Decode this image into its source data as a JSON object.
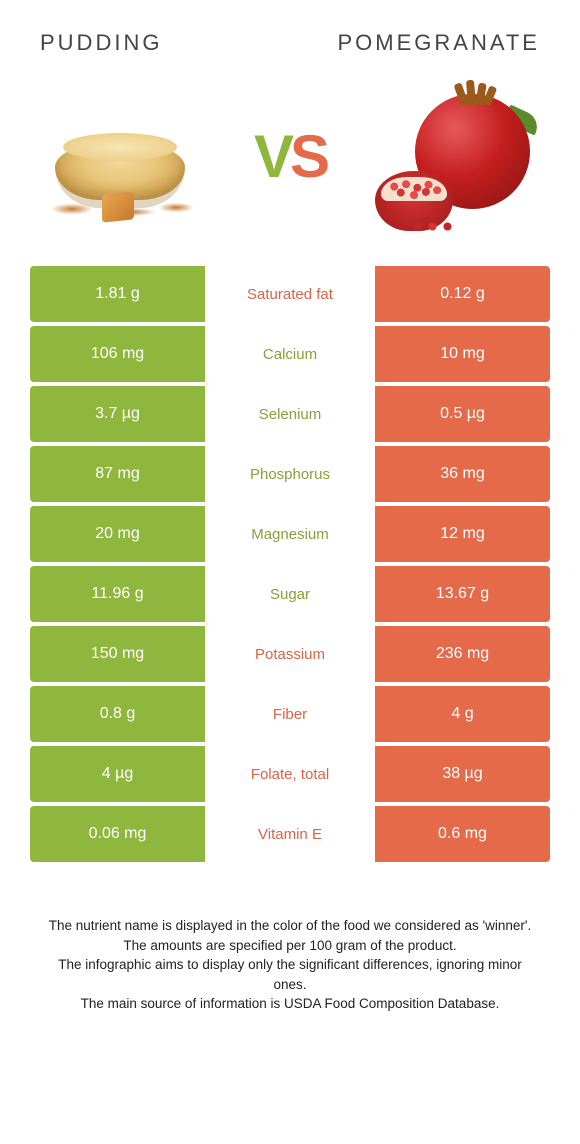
{
  "colors": {
    "left": "#8fb73e",
    "right": "#e46a4a",
    "left_text": "#8a9e3c",
    "right_text": "#d86548",
    "white": "#ffffff"
  },
  "header": {
    "left_title": "Pudding",
    "right_title": "Pomegranate"
  },
  "vs": {
    "v": "V",
    "s": "S"
  },
  "rows": [
    {
      "left": "1.81 g",
      "label": "Saturated fat",
      "right": "0.12 g",
      "winner": "right"
    },
    {
      "left": "106 mg",
      "label": "Calcium",
      "right": "10 mg",
      "winner": "left"
    },
    {
      "left": "3.7 µg",
      "label": "Selenium",
      "right": "0.5 µg",
      "winner": "left"
    },
    {
      "left": "87 mg",
      "label": "Phosphorus",
      "right": "36 mg",
      "winner": "left"
    },
    {
      "left": "20 mg",
      "label": "Magnesium",
      "right": "12 mg",
      "winner": "left"
    },
    {
      "left": "11.96 g",
      "label": "Sugar",
      "right": "13.67 g",
      "winner": "left"
    },
    {
      "left": "150 mg",
      "label": "Potassium",
      "right": "236 mg",
      "winner": "right"
    },
    {
      "left": "0.8 g",
      "label": "Fiber",
      "right": "4 g",
      "winner": "right"
    },
    {
      "left": "4 µg",
      "label": "Folate, total",
      "right": "38 µg",
      "winner": "right"
    },
    {
      "left": "0.06 mg",
      "label": "Vitamin E",
      "right": "0.6 mg",
      "winner": "right"
    }
  ],
  "footer": {
    "line1": "The nutrient name is displayed in the color of the food we considered as 'winner'.",
    "line2": "The amounts are specified per 100 gram of the product.",
    "line3": "The infographic aims to display only the significant differences, ignoring minor ones.",
    "line4": "The main source of information is USDA Food Composition Database."
  }
}
